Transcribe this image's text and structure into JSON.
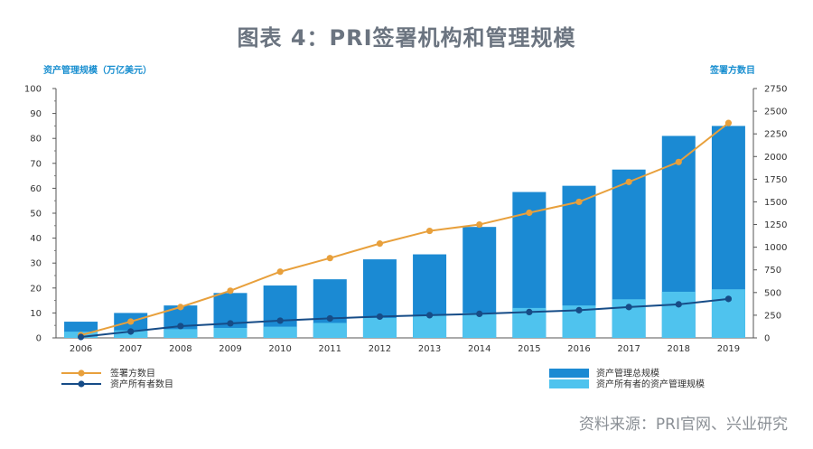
{
  "title": "图表 4：PRI签署机构和管理规模",
  "source": "资料来源：PRI官网、兴业研究",
  "chart_data": {
    "type": "bar",
    "categories": [
      "2006",
      "2007",
      "2008",
      "2009",
      "2010",
      "2011",
      "2012",
      "2013",
      "2014",
      "2015",
      "2016",
      "2017",
      "2018",
      "2019"
    ],
    "left_axis": {
      "label": "资产管理规模（万亿美元）",
      "range": [
        0,
        100
      ],
      "ticks": [
        0,
        10,
        20,
        30,
        40,
        50,
        60,
        70,
        80,
        90,
        100
      ]
    },
    "right_axis": {
      "label": "签署方数目",
      "range": [
        0,
        2750
      ],
      "ticks": [
        0,
        250,
        500,
        750,
        1000,
        1250,
        1500,
        1750,
        2000,
        2250,
        2500,
        2750
      ]
    },
    "series": [
      {
        "name": "资产管理总规模",
        "kind": "bar",
        "axis": "left",
        "color": "#1b8ad3",
        "values": [
          6.5,
          10,
          13,
          18,
          21,
          23.5,
          31.5,
          33.5,
          44.5,
          58.5,
          61,
          67.5,
          81,
          85
        ]
      },
      {
        "name": "资产所有者的资产管理规模",
        "kind": "bar",
        "axis": "left",
        "color": "#4fc3ee",
        "values": [
          2.5,
          3,
          3.5,
          4,
          4.5,
          6,
          8,
          9,
          10,
          12,
          13,
          15.5,
          18.5,
          19.5
        ]
      },
      {
        "name": "签署方数目",
        "kind": "line",
        "axis": "right",
        "color": "#e8a03c",
        "values": [
          30,
          180,
          340,
          520,
          730,
          880,
          1040,
          1180,
          1250,
          1380,
          1500,
          1720,
          1940,
          2370
        ]
      },
      {
        "name": "资产所有者数目",
        "kind": "line",
        "axis": "right",
        "color": "#164c87",
        "values": [
          10,
          70,
          130,
          160,
          190,
          215,
          235,
          250,
          265,
          285,
          305,
          340,
          370,
          430
        ]
      }
    ],
    "legend": [
      "签署方数目",
      "资产所有者数目",
      "资产管理总规模",
      "资产所有者的资产管理规模"
    ]
  }
}
